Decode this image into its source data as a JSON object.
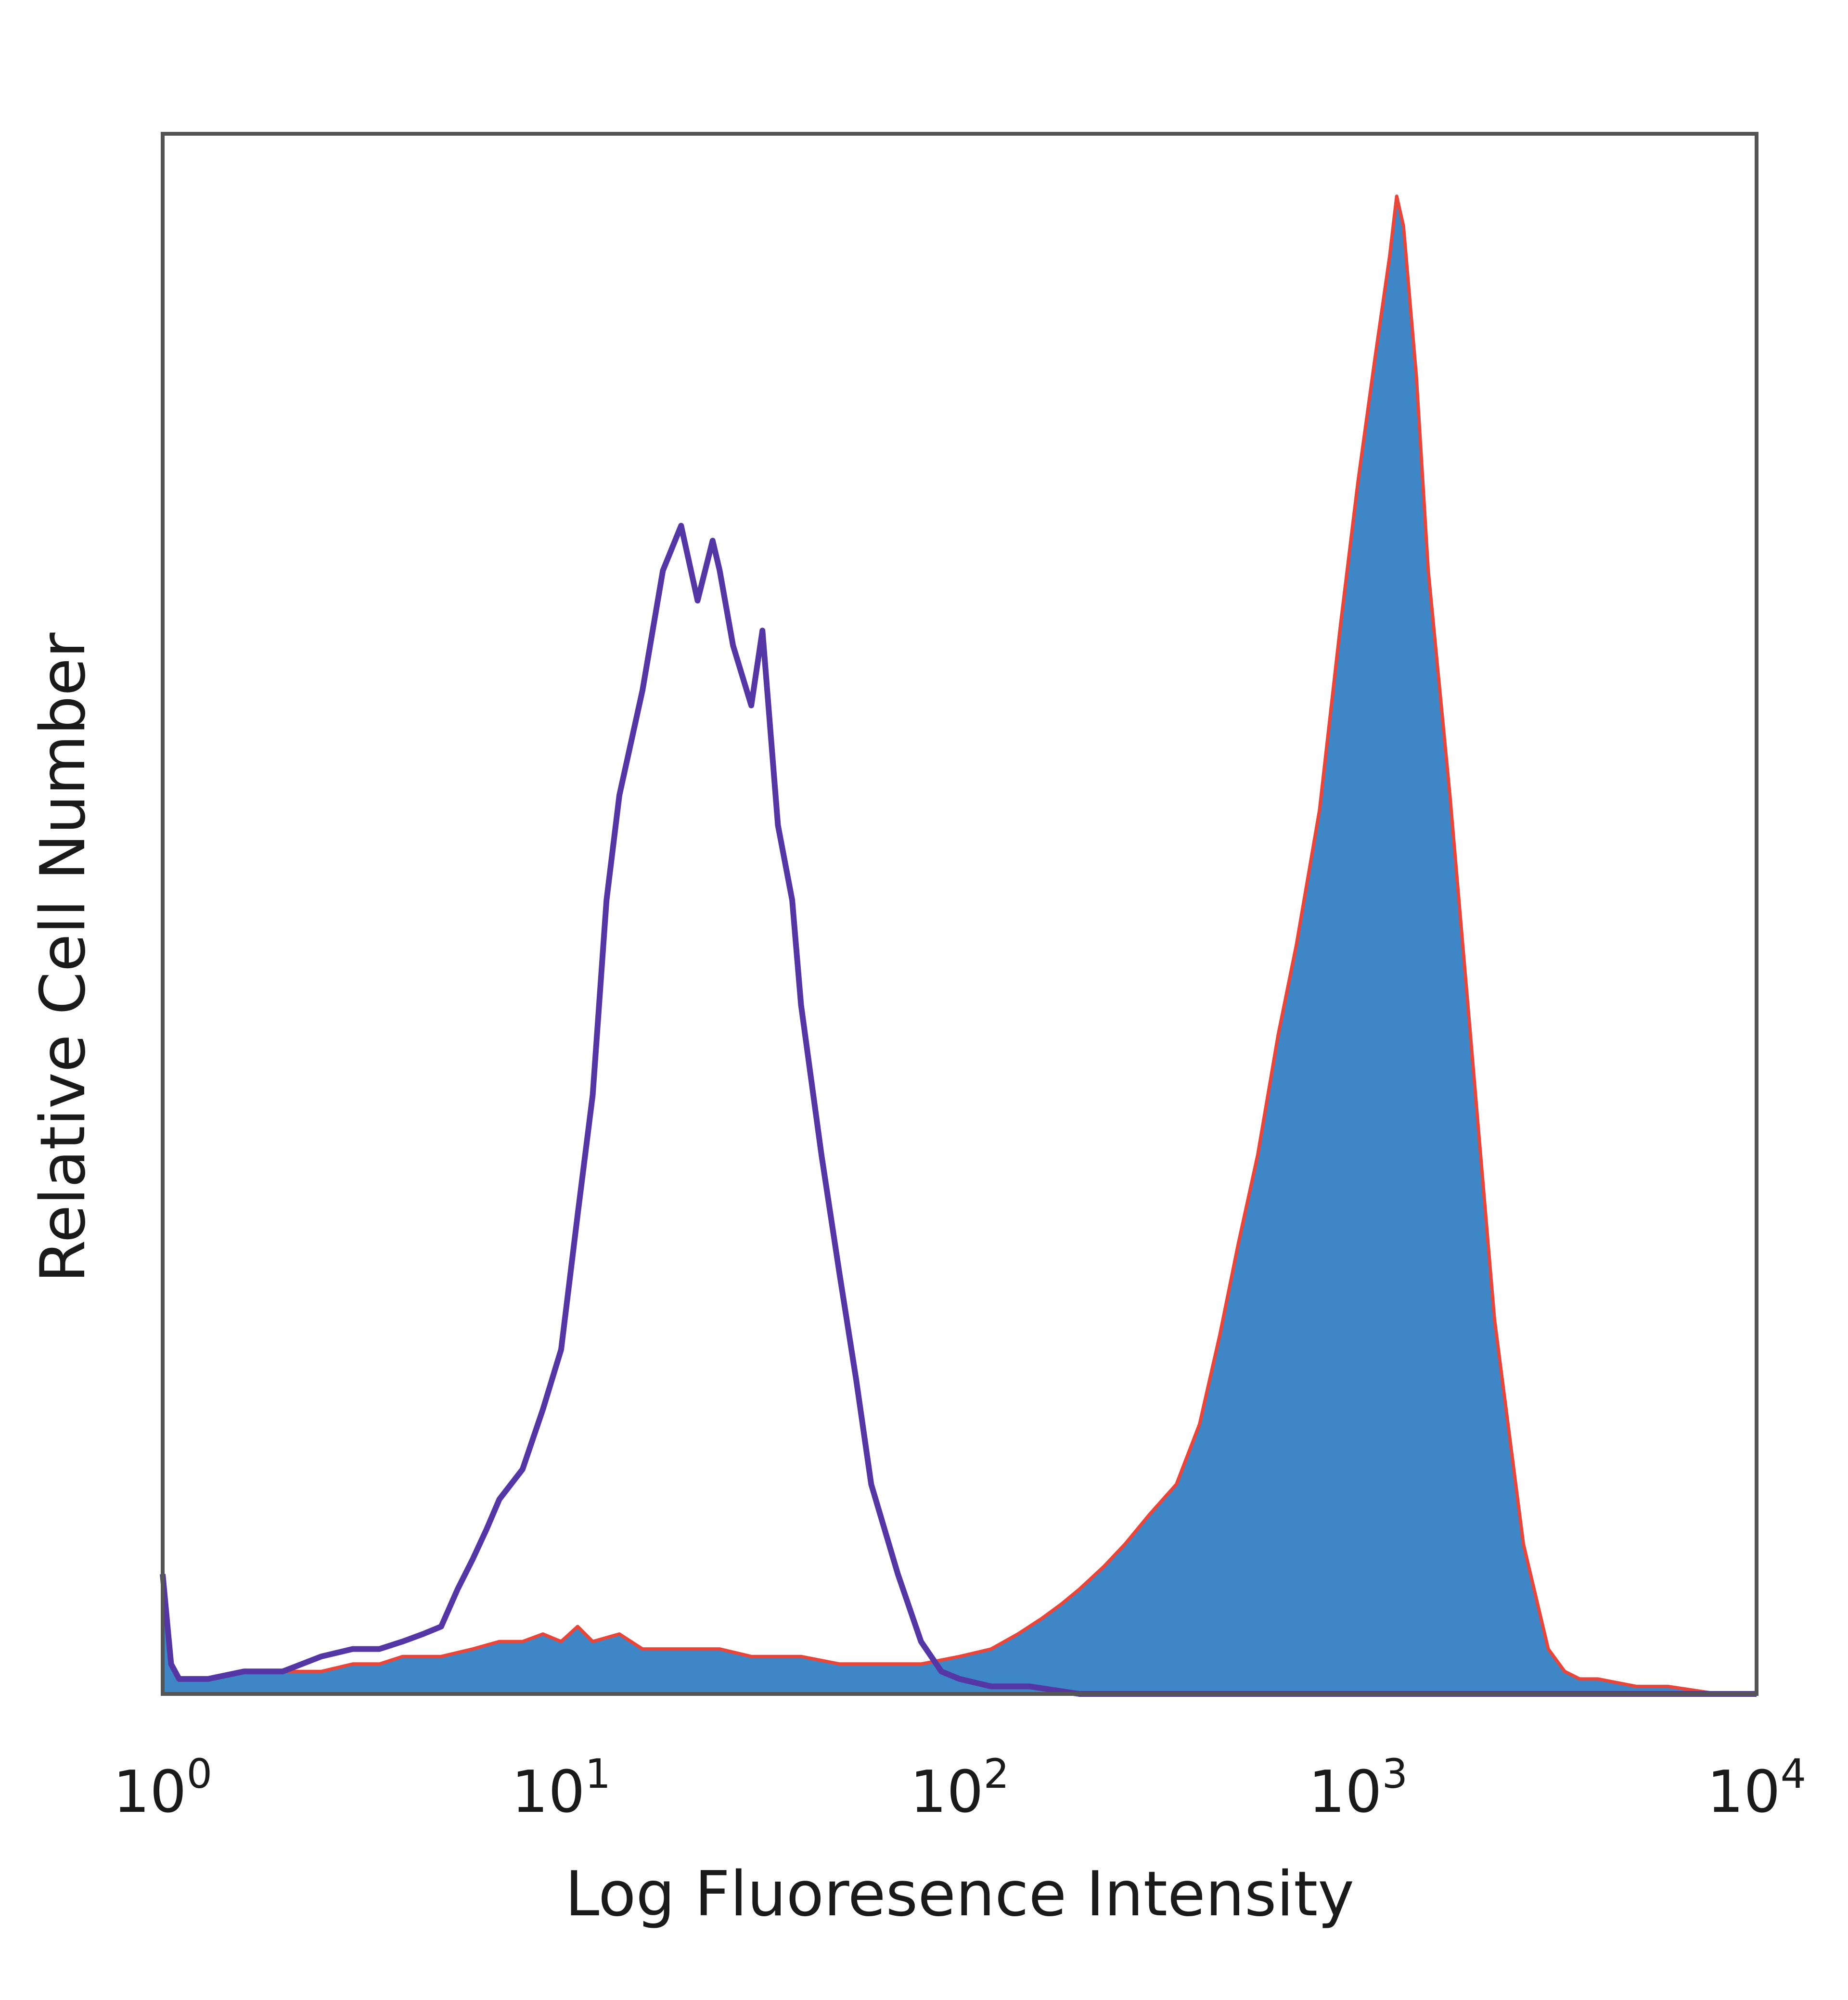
{
  "chart_data": {
    "type": "area",
    "xlabel": "Log Fluoresence Intensity",
    "ylabel": "Relative Cell Number",
    "x_scale": "log",
    "xlim": [
      1,
      10000
    ],
    "ylim": [
      0,
      100
    ],
    "y_ticks_shown": false,
    "grid": false,
    "x_ticks": [
      {
        "value": 1,
        "base": "10",
        "exp": "0"
      },
      {
        "value": 10,
        "base": "10",
        "exp": "1"
      },
      {
        "value": 100,
        "base": "10",
        "exp": "2"
      },
      {
        "value": 1000,
        "base": "10",
        "exp": "3"
      },
      {
        "value": 10000,
        "base": "10",
        "exp": "4"
      }
    ],
    "series": [
      {
        "style": "filled",
        "fill": "#3f86c7",
        "stroke": "#e8463a",
        "x": [
          1,
          1.05,
          1.1,
          1.3,
          1.6,
          2,
          2.5,
          3,
          3.5,
          4,
          5,
          6,
          7,
          8,
          9,
          10,
          11,
          12,
          14,
          16,
          18,
          20,
          25,
          30,
          40,
          50,
          60,
          70,
          80,
          100,
          120,
          140,
          160,
          180,
          200,
          230,
          260,
          300,
          350,
          400,
          450,
          500,
          560,
          630,
          700,
          800,
          900,
          1000,
          1100,
          1200,
          1250,
          1300,
          1400,
          1500,
          1700,
          1900,
          2200,
          2600,
          3000,
          3300,
          3600,
          4000,
          5000,
          6000,
          8000,
          10000
        ],
        "y": [
          8,
          2,
          1,
          1,
          1.5,
          1.5,
          1.5,
          2,
          2,
          2.5,
          2.5,
          3,
          3.5,
          3.5,
          4,
          3.5,
          4.5,
          3.5,
          4,
          3,
          3,
          3,
          3,
          2.5,
          2.5,
          2,
          2,
          2,
          2,
          2.5,
          3,
          4,
          5,
          6,
          7,
          8.5,
          10,
          12,
          14,
          18,
          24,
          30,
          36,
          44,
          50,
          59,
          71,
          81,
          89,
          96,
          100,
          98,
          88,
          75,
          60,
          45,
          25,
          10,
          3,
          1.5,
          1,
          1,
          0.5,
          0.5,
          0,
          0
        ]
      },
      {
        "style": "outline",
        "stroke": "#5536a5",
        "x": [
          1,
          1.05,
          1.1,
          1.3,
          1.6,
          2,
          2.5,
          3,
          3.5,
          4,
          4.5,
          5,
          5.5,
          6,
          6.5,
          7,
          8,
          9,
          10,
          11,
          12,
          13,
          14,
          16,
          18,
          20,
          22,
          24,
          25,
          27,
          30,
          32,
          35,
          38,
          40,
          45,
          50,
          55,
          60,
          70,
          80,
          90,
          100,
          120,
          150,
          200,
          300,
          500,
          1000,
          2000,
          5000,
          10000
        ],
        "y": [
          8,
          2,
          1,
          1,
          1.5,
          1.5,
          2.5,
          3,
          3,
          3.5,
          4,
          4.5,
          7,
          9,
          11,
          13,
          15,
          19,
          23,
          32,
          40,
          53,
          60,
          67,
          75,
          78,
          73,
          77,
          75,
          70,
          66,
          71,
          58,
          53,
          46,
          36,
          28,
          21,
          14,
          8,
          3.5,
          1.5,
          1,
          0.5,
          0.5,
          0,
          0,
          0,
          0,
          0,
          0,
          0
        ]
      }
    ]
  }
}
